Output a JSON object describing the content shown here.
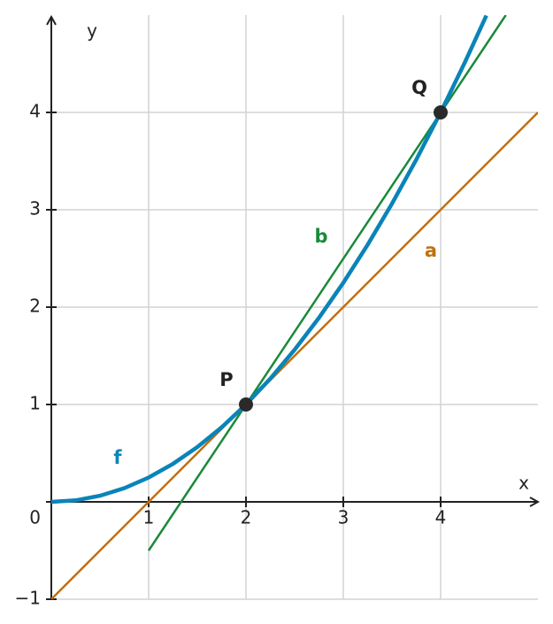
{
  "chart_data": {
    "type": "line",
    "x_label": "x",
    "y_label": "y",
    "xlim": [
      0,
      5
    ],
    "ylim": [
      -1,
      5
    ],
    "xticks": [
      1,
      2,
      3,
      4
    ],
    "yticks": [
      {
        "value": -1,
        "label": "−1"
      },
      0,
      1,
      2,
      3,
      4
    ],
    "grid": true,
    "series": [
      {
        "name": "f",
        "color": "#0a84b8",
        "x": [
          0,
          0.25,
          0.5,
          0.75,
          1,
          1.25,
          1.5,
          1.75,
          2,
          2.25,
          2.5,
          2.75,
          3,
          3.25,
          3.5,
          3.75,
          4,
          4.25,
          4.47
        ],
        "values": [
          0,
          0.015625,
          0.0625,
          0.140625,
          0.25,
          0.390625,
          0.5625,
          0.765625,
          1,
          1.265625,
          1.5625,
          1.890625,
          2.25,
          2.640625,
          3.0625,
          3.515625,
          4,
          4.515625,
          4.995
        ]
      },
      {
        "name": "a",
        "color": "#c0700f",
        "x": [
          0,
          5
        ],
        "values": [
          -1,
          4
        ]
      },
      {
        "name": "b",
        "color": "#1a8a3a",
        "x": [
          1,
          4.67
        ],
        "values": [
          -0.5,
          5
        ]
      }
    ],
    "points": [
      {
        "label": "P",
        "x": 2,
        "y": 1
      },
      {
        "label": "Q",
        "x": 4,
        "y": 4
      }
    ]
  }
}
